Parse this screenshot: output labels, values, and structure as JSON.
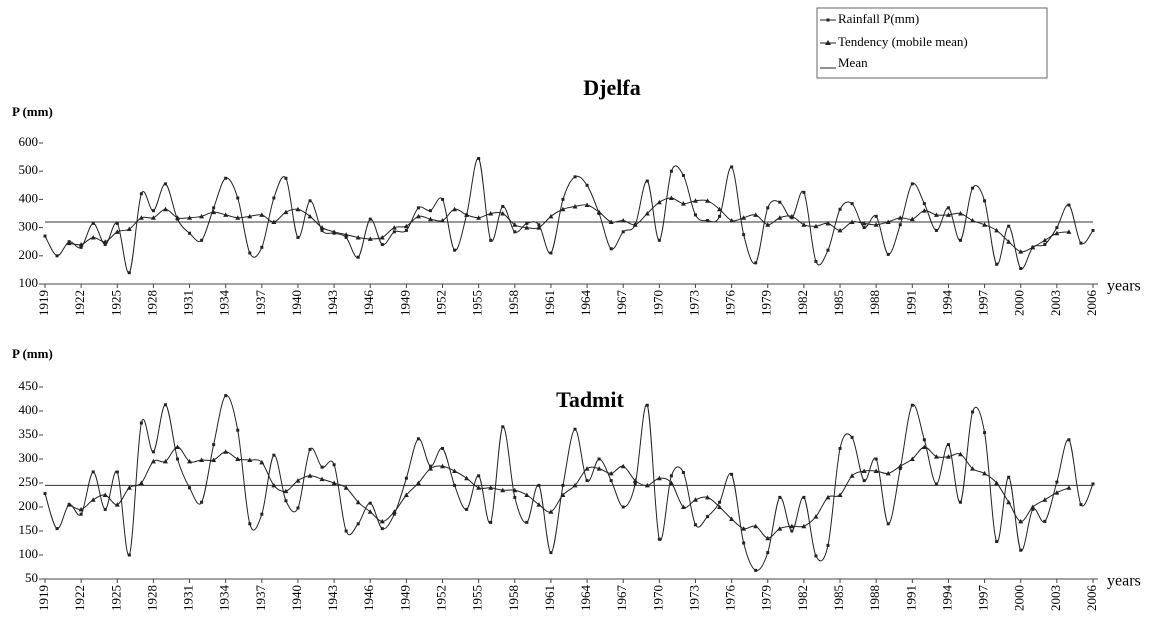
{
  "chart_data": [
    {
      "type": "line",
      "title": "Djelfa",
      "y_label": "P (mm)",
      "x_label": "years",
      "x": [
        1919,
        1920,
        1921,
        1922,
        1923,
        1924,
        1925,
        1926,
        1927,
        1928,
        1929,
        1930,
        1931,
        1932,
        1933,
        1934,
        1935,
        1936,
        1937,
        1938,
        1939,
        1940,
        1941,
        1942,
        1943,
        1944,
        1945,
        1946,
        1947,
        1948,
        1949,
        1950,
        1951,
        1952,
        1953,
        1954,
        1955,
        1956,
        1957,
        1958,
        1959,
        1960,
        1961,
        1962,
        1963,
        1964,
        1965,
        1966,
        1967,
        1968,
        1969,
        1970,
        1971,
        1972,
        1973,
        1974,
        1975,
        1976,
        1977,
        1978,
        1979,
        1980,
        1981,
        1982,
        1983,
        1984,
        1985,
        1986,
        1987,
        1988,
        1989,
        1990,
        1991,
        1992,
        1993,
        1994,
        1995,
        1996,
        1997,
        1998,
        1999,
        2000,
        2001,
        2002,
        2003,
        2004,
        2005,
        2006
      ],
      "xlim": [
        1919,
        2006
      ],
      "xticks": [
        1919,
        1922,
        1925,
        1928,
        1931,
        1934,
        1937,
        1940,
        1943,
        1946,
        1949,
        1952,
        1955,
        1958,
        1961,
        1964,
        1967,
        1970,
        1973,
        1976,
        1979,
        1982,
        1985,
        1988,
        1991,
        1994,
        1997,
        2000,
        2003,
        2006
      ],
      "ylim": [
        100,
        600
      ],
      "yticks": [
        100,
        200,
        300,
        400,
        500,
        600
      ],
      "mean": 320,
      "series": [
        {
          "name": "Rainfall  P(mm)",
          "color": "#222222",
          "marker": "square",
          "values": [
            270,
            200,
            250,
            230,
            315,
            240,
            315,
            140,
            420,
            360,
            455,
            330,
            280,
            255,
            370,
            475,
            405,
            210,
            230,
            405,
            475,
            265,
            395,
            290,
            280,
            265,
            195,
            330,
            240,
            285,
            290,
            370,
            360,
            400,
            220,
            345,
            545,
            255,
            375,
            285,
            315,
            310,
            210,
            400,
            480,
            450,
            350,
            225,
            285,
            310,
            465,
            255,
            500,
            485,
            345,
            325,
            340,
            515,
            275,
            175,
            370,
            390,
            335,
            425,
            180,
            220,
            365,
            385,
            300,
            340,
            205,
            310,
            455,
            385,
            290,
            370,
            255,
            440,
            395,
            170,
            305,
            155,
            230,
            240,
            300,
            380,
            245,
            290
          ]
        },
        {
          "name": "Tendency (mobile mean)",
          "color": "#222222",
          "marker": "triangle",
          "values": [
            null,
            null,
            245,
            240,
            265,
            250,
            285,
            295,
            335,
            335,
            365,
            335,
            335,
            340,
            355,
            345,
            335,
            340,
            345,
            320,
            355,
            365,
            340,
            300,
            285,
            275,
            265,
            260,
            265,
            300,
            305,
            340,
            330,
            325,
            365,
            345,
            335,
            350,
            350,
            310,
            300,
            300,
            340,
            365,
            375,
            380,
            355,
            320,
            325,
            310,
            350,
            390,
            405,
            385,
            395,
            395,
            365,
            325,
            335,
            345,
            310,
            335,
            340,
            310,
            305,
            315,
            290,
            320,
            315,
            310,
            320,
            335,
            330,
            360,
            345,
            345,
            350,
            325,
            310,
            290,
            250,
            215,
            230,
            255,
            280,
            285,
            null,
            null
          ]
        }
      ],
      "mean_name": "Mean"
    },
    {
      "type": "line",
      "title": "Tadmit",
      "y_label": "P (mm)",
      "x_label": "years",
      "x": [
        1919,
        1920,
        1921,
        1922,
        1923,
        1924,
        1925,
        1926,
        1927,
        1928,
        1929,
        1930,
        1931,
        1932,
        1933,
        1934,
        1935,
        1936,
        1937,
        1938,
        1939,
        1940,
        1941,
        1942,
        1943,
        1944,
        1945,
        1946,
        1947,
        1948,
        1949,
        1950,
        1951,
        1952,
        1953,
        1954,
        1955,
        1956,
        1957,
        1958,
        1959,
        1960,
        1961,
        1962,
        1963,
        1964,
        1965,
        1966,
        1967,
        1968,
        1969,
        1970,
        1971,
        1972,
        1973,
        1974,
        1975,
        1976,
        1977,
        1978,
        1979,
        1980,
        1981,
        1982,
        1983,
        1984,
        1985,
        1986,
        1987,
        1988,
        1989,
        1990,
        1991,
        1992,
        1993,
        1994,
        1995,
        1996,
        1997,
        1998,
        1999,
        2000,
        2001,
        2002,
        2003,
        2004,
        2005,
        2006
      ],
      "xlim": [
        1919,
        2006
      ],
      "xticks": [
        1919,
        1922,
        1925,
        1928,
        1931,
        1934,
        1937,
        1940,
        1943,
        1946,
        1949,
        1952,
        1955,
        1958,
        1961,
        1964,
        1967,
        1970,
        1973,
        1976,
        1979,
        1982,
        1985,
        1988,
        1991,
        1994,
        1997,
        2000,
        2003,
        2006
      ],
      "ylim": [
        50,
        450
      ],
      "yticks": [
        50,
        100,
        150,
        200,
        250,
        300,
        350,
        400,
        450
      ],
      "mean": 245,
      "series": [
        {
          "color": "#222222",
          "marker": "square",
          "values": [
            228,
            155,
            205,
            185,
            273,
            195,
            273,
            100,
            375,
            315,
            413,
            300,
            240,
            210,
            330,
            432,
            360,
            165,
            185,
            308,
            213,
            198,
            320,
            283,
            288,
            150,
            165,
            208,
            155,
            185,
            260,
            342,
            285,
            322,
            245,
            195,
            265,
            168,
            367,
            220,
            168,
            245,
            105,
            245,
            362,
            255,
            300,
            255,
            200,
            248,
            412,
            133,
            265,
            272,
            163,
            180,
            210,
            268,
            125,
            68,
            105,
            220,
            150,
            220,
            98,
            120,
            322,
            345,
            255,
            300,
            165,
            280,
            412,
            340,
            248,
            330,
            210,
            398,
            355,
            128,
            262,
            110,
            195,
            170,
            252,
            340,
            205,
            248
          ]
        },
        {
          "color": "#222222",
          "marker": "triangle",
          "values": [
            null,
            null,
            205,
            195,
            215,
            225,
            205,
            240,
            250,
            295,
            295,
            325,
            295,
            298,
            298,
            315,
            300,
            298,
            293,
            245,
            233,
            255,
            265,
            258,
            250,
            240,
            210,
            190,
            170,
            190,
            225,
            250,
            280,
            285,
            275,
            260,
            240,
            240,
            235,
            235,
            225,
            205,
            190,
            225,
            245,
            280,
            280,
            270,
            285,
            255,
            245,
            260,
            250,
            200,
            215,
            220,
            200,
            175,
            155,
            160,
            135,
            155,
            160,
            160,
            180,
            220,
            225,
            265,
            275,
            275,
            270,
            285,
            300,
            325,
            305,
            305,
            310,
            280,
            270,
            250,
            210,
            170,
            200,
            215,
            230,
            240,
            null,
            null
          ]
        }
      ]
    }
  ]
}
